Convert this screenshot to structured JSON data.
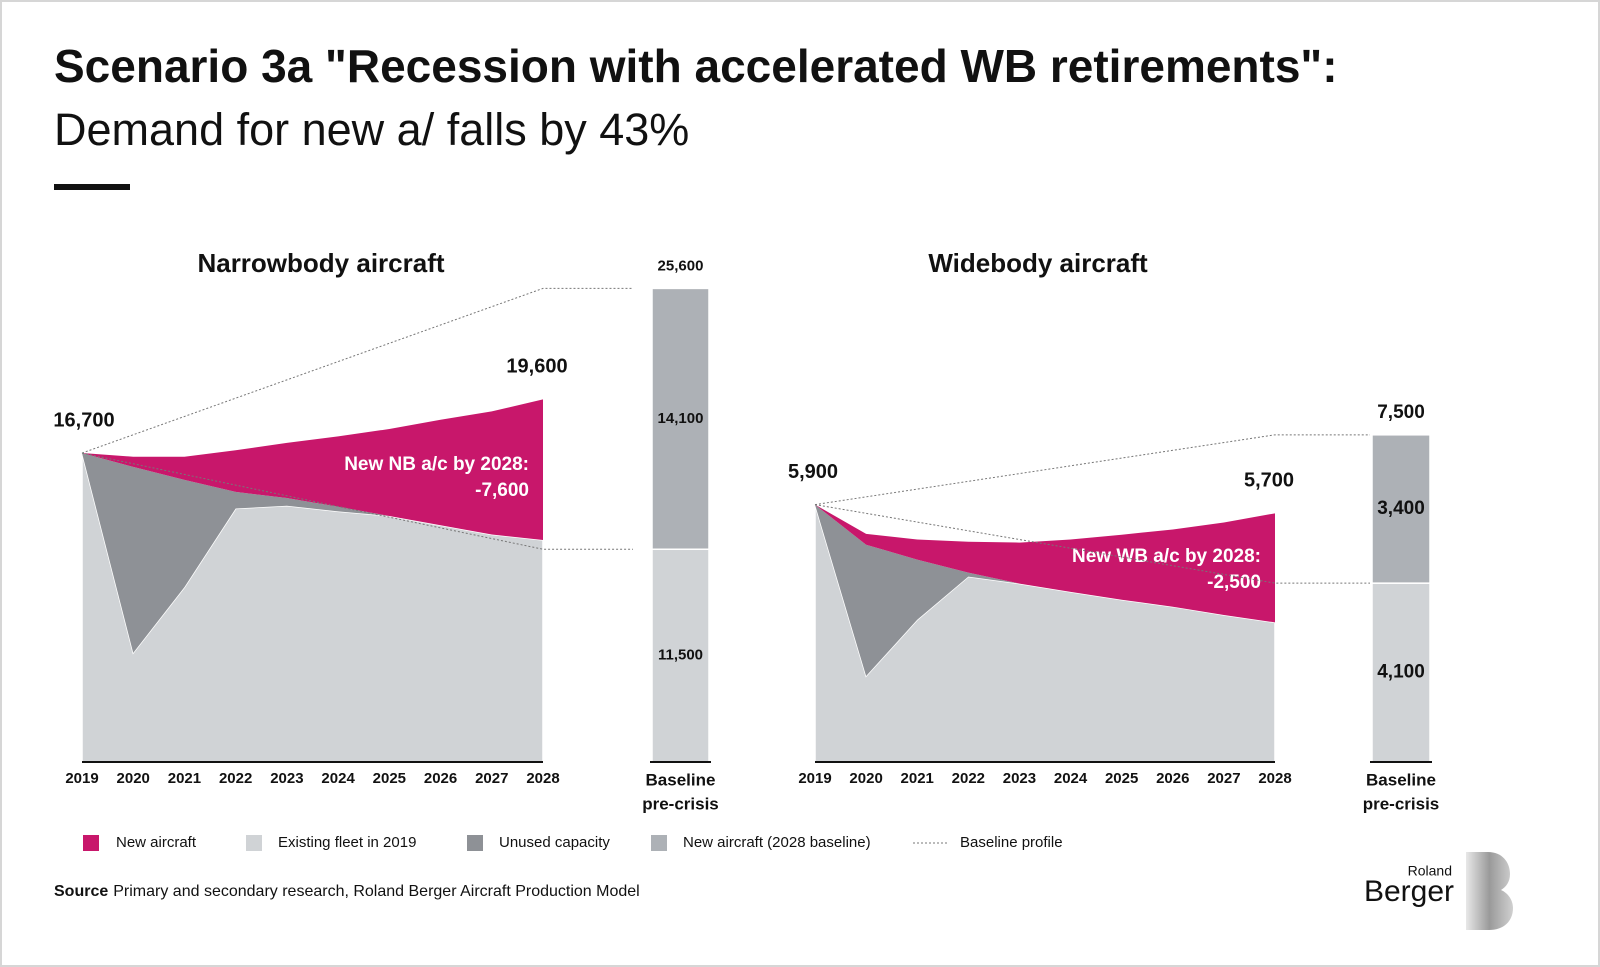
{
  "title": "Scenario 3a \"Recession with accelerated WB retirements\":",
  "subtitle": "Demand for new a/ falls by 43%",
  "source_label": "Source",
  "source": "Primary and secondary research, Roland Berger Aircraft Production Model",
  "logo": [
    "Roland",
    "Berger"
  ],
  "chart_data": [
    {
      "type": "area",
      "title": "Narrowbody aircraft",
      "categories": [
        "2019",
        "2020",
        "2021",
        "2022",
        "2023",
        "2024",
        "2025",
        "2026",
        "2027",
        "2028"
      ],
      "ylim": [
        0,
        26000
      ],
      "series": [
        {
          "name": "Existing fleet in 2019",
          "color": "#d0d3d6",
          "values": [
            16700,
            5900,
            9450,
            13700,
            13850,
            13550,
            13300,
            12800,
            12300,
            12000
          ]
        },
        {
          "name": "Unused capacity",
          "color": "#8e9196",
          "values": [
            0,
            10050,
            5800,
            900,
            420,
            250,
            0,
            0,
            0,
            0
          ]
        },
        {
          "name": "New aircraft",
          "color": "#c8176b",
          "values": [
            0,
            550,
            1250,
            2250,
            2980,
            3800,
            4700,
            5700,
            6650,
            7600
          ]
        }
      ],
      "start_label": "16,700",
      "end_label": "19,600",
      "annotation": [
        "New NB a/c by 2028:",
        "-7,600"
      ],
      "baseline": {
        "label": [
          "Baseline",
          "pre-crisis"
        ],
        "total_label": "25,600",
        "segments": [
          {
            "name": "Existing fleet in 2019",
            "color": "#d0d3d6",
            "value": 11500,
            "value_label": "11,500"
          },
          {
            "name": "New aircraft (2028 baseline)",
            "color": "#adb1b6",
            "value": 14100,
            "value_label": "14,100"
          }
        ]
      },
      "profile": {
        "name": "Baseline profile",
        "color": "#777777"
      }
    },
    {
      "type": "area",
      "title": "Widebody aircraft",
      "categories": [
        "2019",
        "2020",
        "2021",
        "2022",
        "2023",
        "2024",
        "2025",
        "2026",
        "2027",
        "2028"
      ],
      "ylim": [
        0,
        8000
      ],
      "series": [
        {
          "color": "#d0d3d6",
          "values": [
            5900,
            1970,
            3260,
            4250,
            4090,
            3900,
            3720,
            3560,
            3370,
            3200
          ]
        },
        {
          "color": "#8e9196",
          "values": [
            0,
            3010,
            1380,
            90,
            0,
            0,
            0,
            0,
            0,
            0
          ]
        },
        {
          "color": "#c8176b",
          "values": [
            0,
            250,
            460,
            710,
            940,
            1200,
            1490,
            1770,
            2120,
            2500
          ]
        }
      ],
      "start_label": "5,900",
      "end_label": "5,700",
      "annotation": [
        "New WB a/c by 2028:",
        "-2,500"
      ],
      "baseline": {
        "label": [
          "Baseline",
          "pre-crisis"
        ],
        "total_label": "7,500",
        "segments": [
          {
            "color": "#d0d3d6",
            "value": 4100,
            "value_label": "4,100"
          },
          {
            "color": "#adb1b6",
            "value": 3400,
            "value_label": "3,400"
          }
        ]
      },
      "profile": {
        "color": "#777777"
      }
    }
  ]
}
